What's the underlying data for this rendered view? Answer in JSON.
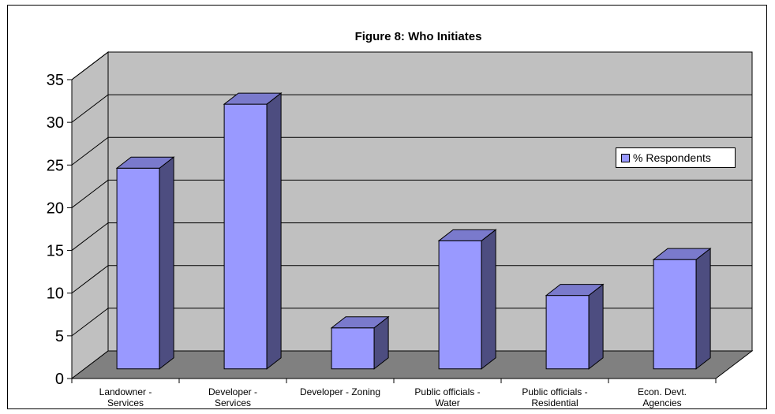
{
  "chart_data": {
    "type": "bar",
    "title": "Figure 8:  Who Initiates",
    "xlabel": "",
    "ylabel": "",
    "categories": [
      [
        "Landowner -",
        "Services"
      ],
      [
        "Developer -",
        "Services"
      ],
      [
        "Developer - Zoning"
      ],
      [
        "Public officials -",
        "Water"
      ],
      [
        "Public officials -",
        "Residential"
      ],
      [
        "Econ. Devt.",
        "Agencies"
      ]
    ],
    "series": [
      {
        "name": "% Respondents",
        "values": [
          23.5,
          31,
          4.8,
          15,
          8.6,
          12.8
        ]
      }
    ],
    "ylim": [
      0,
      35
    ],
    "yticks": [
      0,
      5,
      10,
      15,
      20,
      25,
      30,
      35
    ],
    "grid": true,
    "legend_position": "right",
    "three_d": true
  },
  "colors": {
    "bar_front": "#9999ff",
    "bar_side": "#4d4d80",
    "bar_top": "#7a7acc",
    "wall": "#c0c0c0",
    "floor": "#808080",
    "gridline": "#000000"
  }
}
